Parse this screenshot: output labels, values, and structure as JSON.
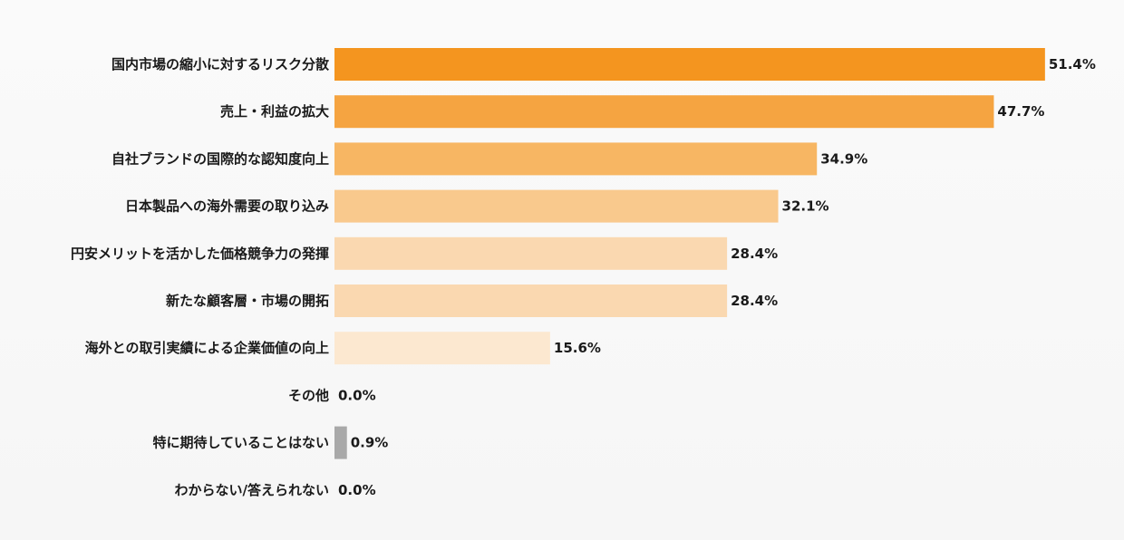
{
  "chart_data": {
    "type": "bar",
    "orientation": "horizontal",
    "title": "",
    "xlabel": "",
    "ylabel": "",
    "unit": "%",
    "xlim": [
      0,
      55
    ],
    "grid": false,
    "legend": "none",
    "categories": [
      "国内市場の縮小に対するリスク分散",
      "売上・利益の拡大",
      "自社ブランドの国際的な認知度向上",
      "日本製品への海外需要の取り込み",
      "円安メリットを活かした価格競争力の発揮",
      "新たな顧客層・市場の開拓",
      "海外との取引実績による企業価値の向上",
      "その他",
      "特に期待していることはない",
      "わからない/答えられない"
    ],
    "values": [
      51.4,
      47.7,
      34.9,
      32.1,
      28.4,
      28.4,
      15.6,
      0.0,
      0.9,
      0.0
    ],
    "value_labels": [
      "51.4%",
      "47.7%",
      "34.9%",
      "32.1%",
      "28.4%",
      "28.4%",
      "15.6%",
      "0.0%",
      "0.9%",
      "0.0%"
    ],
    "bar_colors": [
      "#f4951f",
      "#f5a441",
      "#f7b663",
      "#f9c98d",
      "#fad8b0",
      "#fad8b0",
      "#fce8d0",
      "#fce8d0",
      "#a9a9a9",
      "#fce8d0"
    ]
  }
}
